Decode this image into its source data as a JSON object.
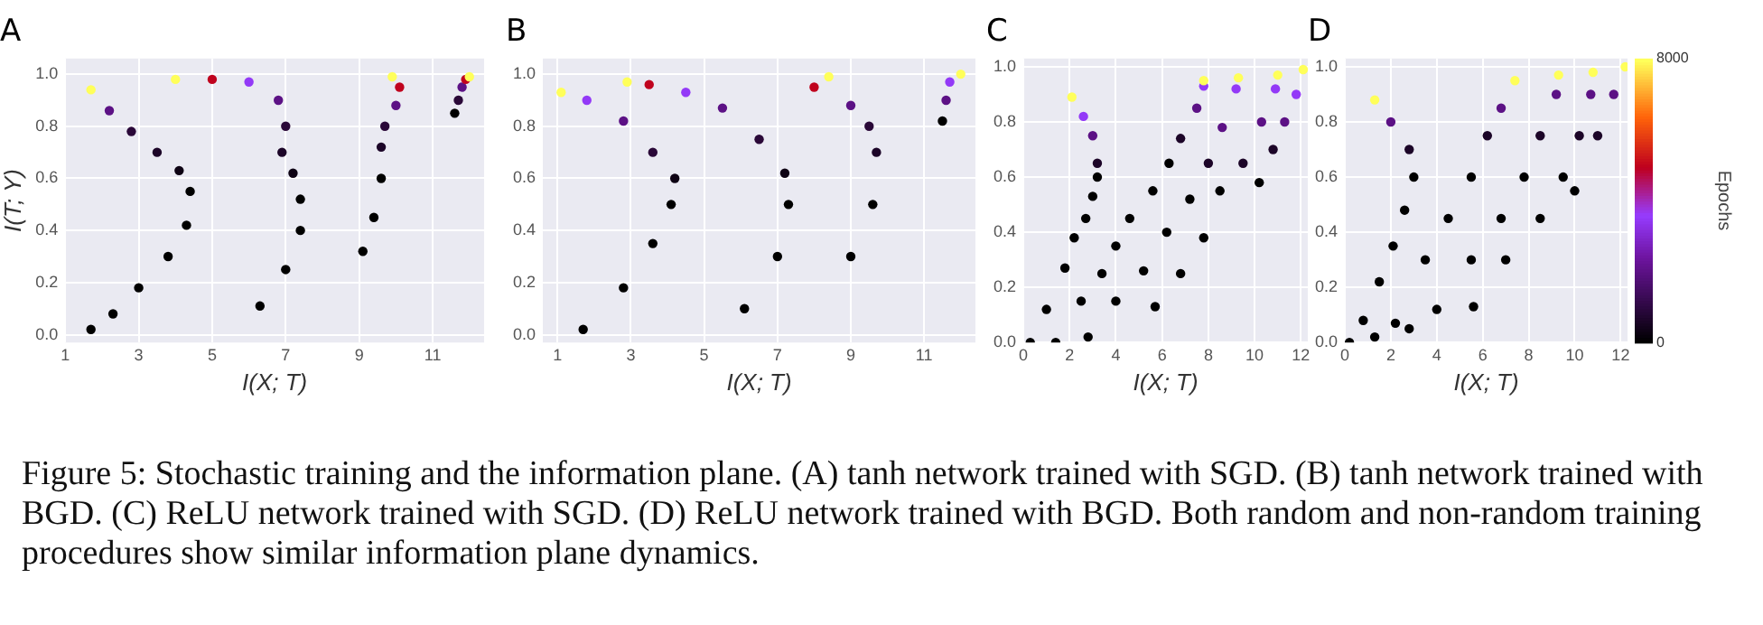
{
  "chart_data": [
    {
      "type": "scatter",
      "title": "A",
      "xlabel": "I(X; T)",
      "ylabel": "I(T; Y)",
      "grid": true,
      "xlim": [
        1,
        12.4
      ],
      "xticks": [
        1,
        3,
        5,
        7,
        9,
        11
      ],
      "ylim": [
        -0.03,
        1.06
      ],
      "yticks": [
        {
          "value": 0,
          "label": "0.0"
        },
        {
          "value": 0.2,
          "label": "0.2"
        },
        {
          "value": 0.4,
          "label": "0.4"
        },
        {
          "value": 0.6,
          "label": "0.6"
        },
        {
          "value": 0.8,
          "label": "0.8"
        },
        {
          "value": 1,
          "label": "1.0"
        }
      ],
      "series": [
        {
          "x": [
            1.7,
            2.3,
            3.0,
            3.8,
            4.3,
            4.4,
            4.1,
            3.5,
            2.8,
            2.2,
            1.7
          ],
          "values": [
            0.02,
            0.08,
            0.18,
            0.3,
            0.42,
            0.55,
            0.63,
            0.7,
            0.78,
            0.86,
            0.94
          ],
          "colors": [
            "#000000",
            "#000000",
            "#000000",
            "#000000",
            "#000000",
            "#000000",
            "#0e0314",
            "#1c0528",
            "#2a0838",
            "#5c1185",
            "#ffff5a"
          ]
        },
        {
          "x": [
            6.3,
            7.0,
            7.4,
            7.4,
            7.2,
            6.9,
            7.0,
            6.8,
            6.0,
            5.0,
            4.0
          ],
          "values": [
            0.11,
            0.25,
            0.4,
            0.52,
            0.62,
            0.7,
            0.8,
            0.9,
            0.97,
            0.98,
            0.98
          ],
          "colors": [
            "#000000",
            "#000000",
            "#000000",
            "#000000",
            "#0e0314",
            "#1c0528",
            "#2a0838",
            "#5c1185",
            "#9339f7",
            "#c0031e",
            "#ffff5a"
          ]
        },
        {
          "x": [
            9.1,
            9.4,
            9.6,
            9.6,
            9.7,
            10.0,
            10.1,
            9.9
          ],
          "values": [
            0.32,
            0.45,
            0.6,
            0.72,
            0.8,
            0.88,
            0.95,
            0.99
          ],
          "colors": [
            "#000000",
            "#000000",
            "#000000",
            "#1c0528",
            "#2a0838",
            "#5c1185",
            "#c0031e",
            "#ffff5a"
          ]
        },
        {
          "x": [
            11.6,
            11.7,
            11.8,
            11.9,
            12.0
          ],
          "values": [
            0.85,
            0.9,
            0.95,
            0.98,
            0.99
          ],
          "colors": [
            "#000000",
            "#2a0838",
            "#5c1185",
            "#c0031e",
            "#ffff5a"
          ]
        }
      ]
    },
    {
      "type": "scatter",
      "title": "B",
      "xlabel": "I(X; T)",
      "grid": true,
      "xlim": [
        0.6,
        12.4
      ],
      "xticks": [
        1,
        3,
        5,
        7,
        9,
        11
      ],
      "ylim": [
        -0.03,
        1.06
      ],
      "yticks": [
        {
          "value": 0,
          "label": "0.0"
        },
        {
          "value": 0.2,
          "label": "0.2"
        },
        {
          "value": 0.4,
          "label": "0.4"
        },
        {
          "value": 0.6,
          "label": "0.6"
        },
        {
          "value": 0.8,
          "label": "0.8"
        },
        {
          "value": 1,
          "label": "1.0"
        }
      ],
      "series": [
        {
          "x": [
            1.7,
            2.8,
            3.6,
            4.1,
            4.2,
            3.6,
            2.8,
            1.8,
            1.1
          ],
          "values": [
            0.02,
            0.18,
            0.35,
            0.5,
            0.6,
            0.7,
            0.82,
            0.9,
            0.93
          ],
          "colors": [
            "#000000",
            "#000000",
            "#000000",
            "#000000",
            "#0e0314",
            "#2a0838",
            "#5c1185",
            "#9339f7",
            "#ffff5a"
          ]
        },
        {
          "x": [
            6.1,
            7.0,
            7.3,
            7.2,
            6.5,
            5.5,
            4.5,
            3.5,
            2.9
          ],
          "values": [
            0.1,
            0.3,
            0.5,
            0.62,
            0.75,
            0.87,
            0.93,
            0.96,
            0.97
          ],
          "colors": [
            "#000000",
            "#000000",
            "#000000",
            "#0e0314",
            "#2a0838",
            "#5c1185",
            "#9339f7",
            "#c0031e",
            "#ffff5a"
          ]
        },
        {
          "x": [
            9.0,
            9.6,
            9.7,
            9.5,
            9.0,
            8.0,
            8.4
          ],
          "values": [
            0.3,
            0.5,
            0.7,
            0.8,
            0.88,
            0.95,
            0.99
          ],
          "colors": [
            "#000000",
            "#000000",
            "#1c0528",
            "#2a0838",
            "#5c1185",
            "#c0031e",
            "#ffff5a"
          ]
        },
        {
          "x": [
            11.5,
            11.6,
            11.7,
            12.0
          ],
          "values": [
            0.82,
            0.9,
            0.97,
            1.0
          ],
          "colors": [
            "#000000",
            "#5c1185",
            "#9339f7",
            "#ffff5a"
          ]
        }
      ]
    },
    {
      "type": "scatter",
      "title": "C",
      "xlabel": "I(X; T)",
      "grid": true,
      "xlim": [
        0,
        12.3
      ],
      "xticks": [
        0,
        2,
        4,
        6,
        8,
        10,
        12
      ],
      "ylim": [
        0,
        1.03
      ],
      "yticks": [
        {
          "value": 0,
          "label": "0.0"
        },
        {
          "value": 0.2,
          "label": "0.2"
        },
        {
          "value": 0.4,
          "label": "0.4"
        },
        {
          "value": 0.6,
          "label": "0.6"
        },
        {
          "value": 0.8,
          "label": "0.8"
        },
        {
          "value": 1,
          "label": "1.0"
        }
      ],
      "series": [
        {
          "x": [
            0.3,
            1.0,
            1.8,
            2.2,
            2.7,
            3.0,
            3.2,
            3.2,
            3.0,
            2.6,
            2.1
          ],
          "values": [
            0.0,
            0.12,
            0.27,
            0.38,
            0.45,
            0.53,
            0.6,
            0.65,
            0.75,
            0.82,
            0.89
          ],
          "colors": [
            "#000000",
            "#000000",
            "#000000",
            "#000000",
            "#000000",
            "#000000",
            "#000000",
            "#1c0528",
            "#5c1185",
            "#9339f7",
            "#ffff5a"
          ]
        },
        {
          "x": [
            1.4,
            2.5,
            3.4,
            4.0,
            4.6,
            5.6,
            6.3,
            6.8,
            7.5,
            7.8,
            7.8
          ],
          "values": [
            0.0,
            0.15,
            0.25,
            0.35,
            0.45,
            0.55,
            0.65,
            0.74,
            0.85,
            0.93,
            0.95
          ],
          "colors": [
            "#000000",
            "#000000",
            "#000000",
            "#000000",
            "#000000",
            "#000000",
            "#000000",
            "#1c0528",
            "#5c1185",
            "#9339f7",
            "#ffff5a"
          ]
        },
        {
          "x": [
            2.8,
            4.0,
            5.2,
            6.2,
            7.2,
            8.0,
            8.6,
            9.2,
            9.3
          ],
          "values": [
            0.02,
            0.15,
            0.26,
            0.4,
            0.52,
            0.65,
            0.78,
            0.92,
            0.96
          ],
          "colors": [
            "#000000",
            "#000000",
            "#000000",
            "#000000",
            "#000000",
            "#1c0528",
            "#5c1185",
            "#9339f7",
            "#ffff5a"
          ]
        },
        {
          "x": [
            5.7,
            6.8,
            7.8,
            8.5,
            9.5,
            10.3,
            10.9,
            11.0
          ],
          "values": [
            0.13,
            0.25,
            0.38,
            0.55,
            0.65,
            0.8,
            0.92,
            0.97
          ],
          "colors": [
            "#000000",
            "#000000",
            "#000000",
            "#000000",
            "#1c0528",
            "#5c1185",
            "#9339f7",
            "#ffff5a"
          ]
        },
        {
          "x": [
            10.2,
            10.8,
            11.3,
            11.8,
            12.1
          ],
          "values": [
            0.58,
            0.7,
            0.8,
            0.9,
            0.99
          ],
          "colors": [
            "#000000",
            "#1c0528",
            "#5c1185",
            "#9339f7",
            "#ffff5a"
          ]
        }
      ]
    },
    {
      "type": "scatter",
      "title": "D",
      "xlabel": "I(X; T)",
      "grid": true,
      "xlim": [
        0,
        12.3
      ],
      "xticks": [
        0,
        2,
        4,
        6,
        8,
        10,
        12
      ],
      "ylim": [
        0,
        1.03
      ],
      "yticks": [
        {
          "value": 0,
          "label": "0.0"
        },
        {
          "value": 0.2,
          "label": "0.2"
        },
        {
          "value": 0.4,
          "label": "0.4"
        },
        {
          "value": 0.6,
          "label": "0.6"
        },
        {
          "value": 0.8,
          "label": "0.8"
        },
        {
          "value": 1,
          "label": "1.0"
        }
      ],
      "clim": [
        0,
        8000
      ],
      "cticks": [
        0,
        8000
      ],
      "clabel": "Epochs",
      "series": [
        {
          "x": [
            0.2,
            0.8,
            1.5,
            2.1,
            2.6,
            3.0,
            2.8,
            2.0,
            1.3
          ],
          "values": [
            0.0,
            0.08,
            0.22,
            0.35,
            0.48,
            0.6,
            0.7,
            0.8,
            0.88
          ],
          "colors": [
            "#000000",
            "#000000",
            "#000000",
            "#000000",
            "#000000",
            "#000000",
            "#1c0528",
            "#5c1185",
            "#ffff5a"
          ]
        },
        {
          "x": [
            1.3,
            2.2,
            3.5,
            4.5,
            5.5,
            6.2,
            6.8,
            7.4
          ],
          "values": [
            0.02,
            0.07,
            0.3,
            0.45,
            0.6,
            0.75,
            0.85,
            0.95
          ],
          "colors": [
            "#000000",
            "#000000",
            "#000000",
            "#000000",
            "#000000",
            "#1c0528",
            "#5c1185",
            "#ffff5a"
          ]
        },
        {
          "x": [
            2.8,
            4.0,
            5.5,
            6.8,
            7.8,
            8.5,
            9.2,
            9.3
          ],
          "values": [
            0.05,
            0.12,
            0.3,
            0.45,
            0.6,
            0.75,
            0.9,
            0.97
          ],
          "colors": [
            "#000000",
            "#000000",
            "#000000",
            "#000000",
            "#000000",
            "#1c0528",
            "#5c1185",
            "#ffff5a"
          ]
        },
        {
          "x": [
            5.6,
            7.0,
            8.5,
            9.5,
            10.2,
            10.7,
            10.8
          ],
          "values": [
            0.13,
            0.3,
            0.45,
            0.6,
            0.75,
            0.9,
            0.98
          ],
          "colors": [
            "#000000",
            "#000000",
            "#000000",
            "#000000",
            "#1c0528",
            "#5c1185",
            "#ffff5a"
          ]
        },
        {
          "x": [
            10.0,
            11.0,
            11.7,
            12.2
          ],
          "values": [
            0.55,
            0.75,
            0.9,
            1.0
          ],
          "colors": [
            "#000000",
            "#1c0528",
            "#5c1185",
            "#ffff5a"
          ]
        }
      ]
    },
    {
      "type": "other",
      "annotations": [
        "Figure 5: Stochastic training and the information plane. (A) tanh network trained with SGD. (B) tanh network trained with BGD. (C) ReLU network trained with SGD. (D) ReLU network trained with BGD. Both random and non-random training procedures show similar information plane dynamics."
      ]
    }
  ]
}
